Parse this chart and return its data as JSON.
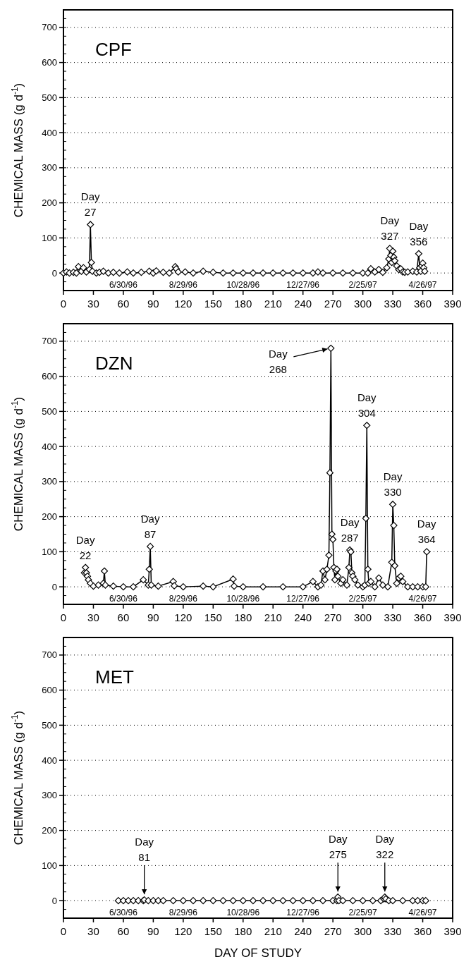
{
  "chart_data": [
    {
      "type": "line",
      "title": "CPF",
      "ylabel": "CHEMICAL MASS (g d$^{-1}$)",
      "marker": "diamond",
      "grid": "y",
      "color": "#000000",
      "x": [
        0,
        3,
        6,
        10,
        13,
        15,
        18,
        20,
        23,
        26,
        27,
        28,
        29,
        33,
        36,
        40,
        45,
        50,
        56,
        64,
        70,
        78,
        86,
        90,
        93,
        100,
        106,
        112,
        113,
        115,
        122,
        130,
        140,
        150,
        160,
        170,
        180,
        190,
        200,
        210,
        220,
        230,
        240,
        250,
        255,
        260,
        270,
        280,
        290,
        300,
        305,
        308,
        312,
        316,
        320,
        324,
        326,
        327,
        328,
        329,
        330,
        331,
        332,
        334,
        336,
        338,
        340,
        342,
        345,
        350,
        354,
        356,
        357,
        358,
        359,
        360,
        361,
        362
      ],
      "values": [
        0,
        3,
        0,
        2,
        0,
        18,
        5,
        15,
        3,
        10,
        138,
        30,
        5,
        0,
        2,
        5,
        0,
        2,
        0,
        3,
        0,
        2,
        5,
        0,
        6,
        2,
        0,
        18,
        12,
        3,
        3,
        0,
        5,
        2,
        0,
        0,
        0,
        0,
        0,
        0,
        0,
        0,
        0,
        0,
        3,
        0,
        0,
        0,
        0,
        0,
        0,
        12,
        3,
        10,
        2,
        15,
        40,
        70,
        50,
        30,
        62,
        45,
        35,
        20,
        10,
        12,
        3,
        2,
        3,
        5,
        3,
        55,
        15,
        5,
        20,
        28,
        15,
        5
      ],
      "xlim": [
        0,
        390
      ],
      "xticks": [
        0,
        30,
        60,
        90,
        120,
        150,
        180,
        210,
        240,
        270,
        300,
        330,
        360,
        390
      ],
      "ylim": [
        -50,
        750
      ],
      "yticks": [
        0,
        100,
        200,
        300,
        400,
        500,
        600,
        700
      ],
      "x2lim": [
        "1996-05-01",
        "1997-05-26"
      ],
      "x2ticks": [
        {
          "value": "1996-06-30",
          "label": "6/30/96"
        },
        {
          "value": "1996-08-29",
          "label": "8/29/96"
        },
        {
          "value": "1996-10-28",
          "label": "10/28/96"
        },
        {
          "value": "1996-12-27",
          "label": "12/27/96"
        },
        {
          "value": "1997-02-25",
          "label": "2/25/97"
        },
        {
          "value": "1997-04-26",
          "label": "4/26/97"
        }
      ],
      "annotations": [
        {
          "text": "Day 27",
          "x": 27,
          "y": 138
        },
        {
          "text": "Day 327",
          "x": 327,
          "y": 70
        },
        {
          "text": "Day 356",
          "x": 356,
          "y": 55
        }
      ]
    },
    {
      "type": "line",
      "title": "DZN",
      "ylabel": "CHEMICAL MASS (g d$^{-1}$)",
      "marker": "diamond",
      "grid": "y",
      "color": "#000000",
      "x": [
        21,
        22,
        23,
        24,
        25,
        27,
        30,
        35,
        40,
        41,
        42,
        50,
        60,
        70,
        80,
        85,
        86,
        87,
        88,
        95,
        110,
        111,
        120,
        140,
        150,
        170,
        171,
        180,
        200,
        220,
        240,
        250,
        255,
        258,
        260,
        262,
        264,
        266,
        267,
        268,
        269,
        270,
        271,
        272,
        273,
        274,
        275,
        278,
        280,
        284,
        286,
        287,
        288,
        289,
        290,
        292,
        295,
        300,
        302,
        303,
        304,
        305,
        306,
        308,
        312,
        316,
        320,
        325,
        329,
        330,
        331,
        332,
        334,
        336,
        338,
        340,
        345,
        350,
        355,
        360,
        363,
        364
      ],
      "values": [
        40,
        55,
        40,
        30,
        20,
        10,
        2,
        5,
        10,
        45,
        5,
        2,
        0,
        0,
        20,
        5,
        50,
        115,
        5,
        2,
        15,
        3,
        0,
        2,
        0,
        22,
        2,
        0,
        0,
        0,
        0,
        15,
        0,
        5,
        45,
        20,
        50,
        90,
        325,
        680,
        150,
        135,
        55,
        20,
        45,
        50,
        30,
        10,
        20,
        5,
        55,
        105,
        100,
        40,
        30,
        20,
        5,
        0,
        5,
        195,
        460,
        50,
        10,
        15,
        0,
        25,
        5,
        0,
        70,
        235,
        175,
        60,
        10,
        25,
        30,
        15,
        0,
        0,
        0,
        0,
        0,
        100
      ],
      "xlim": [
        0,
        390
      ],
      "xticks": [
        0,
        30,
        60,
        90,
        120,
        150,
        180,
        210,
        240,
        270,
        300,
        330,
        360,
        390
      ],
      "ylim": [
        -50,
        750
      ],
      "yticks": [
        0,
        100,
        200,
        300,
        400,
        500,
        600,
        700
      ],
      "x2lim": [
        "1996-05-01",
        "1997-05-26"
      ],
      "x2ticks": [
        {
          "value": "1996-06-30",
          "label": "6/30/96"
        },
        {
          "value": "1996-08-29",
          "label": "8/29/96"
        },
        {
          "value": "1996-10-28",
          "label": "10/28/96"
        },
        {
          "value": "1996-12-27",
          "label": "12/27/96"
        },
        {
          "value": "1997-02-25",
          "label": "2/25/97"
        },
        {
          "value": "1997-04-26",
          "label": "4/26/97"
        }
      ],
      "annotations": [
        {
          "text": "Day 22",
          "x": 22,
          "y": 55
        },
        {
          "text": "Day 87",
          "x": 87,
          "y": 115
        },
        {
          "text": "Day 268",
          "x": 268,
          "y": 680
        },
        {
          "text": "Day 287",
          "x": 287,
          "y": 105
        },
        {
          "text": "Day 304",
          "x": 304,
          "y": 460
        },
        {
          "text": "Day 330",
          "x": 330,
          "y": 235
        },
        {
          "text": "Day 364",
          "x": 364,
          "y": 100
        }
      ]
    },
    {
      "type": "line",
      "title": "MET",
      "ylabel": "CHEMICAL MASS (g d$^{-1}$)",
      "xlabel": "DAY OF STUDY",
      "marker": "diamond",
      "grid": "y",
      "color": "#000000",
      "x": [
        55,
        60,
        65,
        70,
        75,
        80,
        81,
        85,
        90,
        95,
        100,
        110,
        120,
        130,
        140,
        150,
        160,
        170,
        180,
        190,
        200,
        210,
        220,
        230,
        240,
        250,
        260,
        270,
        274,
        275,
        276,
        280,
        290,
        300,
        310,
        318,
        321,
        322,
        323,
        326,
        330,
        340,
        350,
        355,
        360,
        363
      ],
      "values": [
        0,
        0,
        0,
        0,
        0,
        0,
        2,
        0,
        0,
        0,
        0,
        0,
        0,
        0,
        0,
        0,
        0,
        0,
        0,
        0,
        0,
        0,
        0,
        0,
        0,
        0,
        0,
        0,
        0,
        10,
        0,
        0,
        0,
        0,
        0,
        0,
        5,
        10,
        5,
        0,
        0,
        0,
        0,
        0,
        0,
        0
      ],
      "xlim": [
        0,
        390
      ],
      "xticks": [
        0,
        30,
        60,
        90,
        120,
        150,
        180,
        210,
        240,
        270,
        300,
        330,
        360,
        390
      ],
      "ylim": [
        -50,
        750
      ],
      "yticks": [
        0,
        100,
        200,
        300,
        400,
        500,
        600,
        700
      ],
      "x2lim": [
        "1996-05-01",
        "1997-05-26"
      ],
      "x2ticks": [
        {
          "value": "1996-06-30",
          "label": "6/30/96"
        },
        {
          "value": "1996-08-29",
          "label": "8/29/96"
        },
        {
          "value": "1996-10-28",
          "label": "10/28/96"
        },
        {
          "value": "1996-12-27",
          "label": "12/27/96"
        },
        {
          "value": "1997-02-25",
          "label": "2/25/97"
        },
        {
          "value": "1997-04-26",
          "label": "4/26/97"
        }
      ],
      "annotations": [
        {
          "text": "Day 81",
          "x": 81,
          "y": 2
        },
        {
          "text": "Day 275",
          "x": 275,
          "y": 10
        },
        {
          "text": "Day 322",
          "x": 322,
          "y": 10
        }
      ]
    }
  ]
}
